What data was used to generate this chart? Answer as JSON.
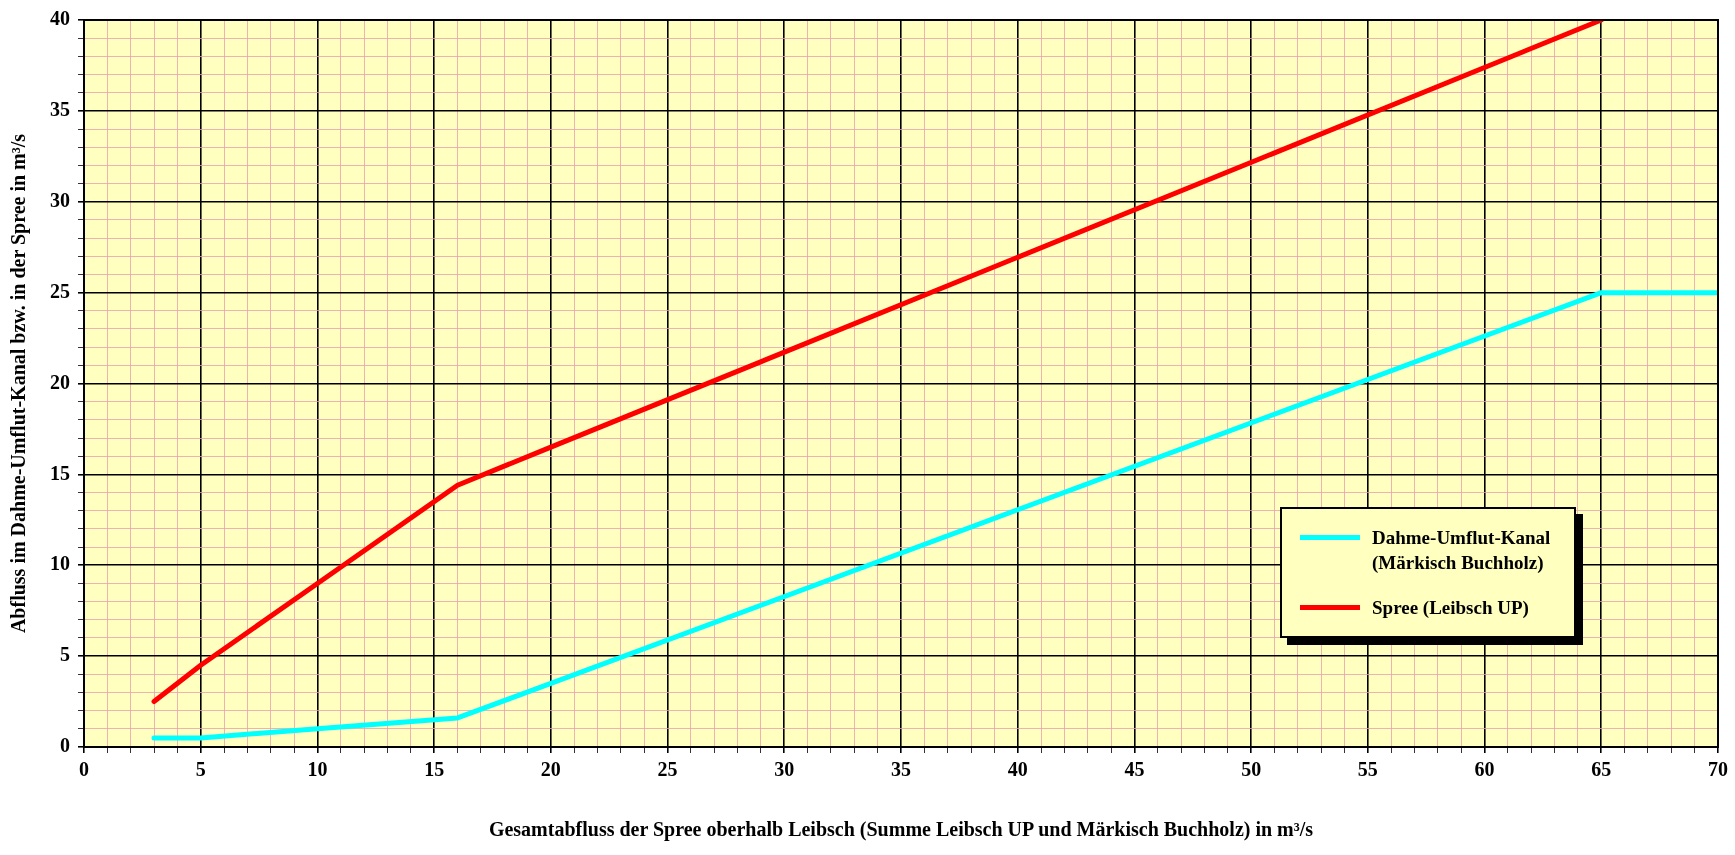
{
  "chart_data": {
    "type": "line",
    "xlabel": "Gesamtabfluss der Spree oberhalb Leibsch (Summe Leibsch UP und Märkisch Buchholz) in m³/s",
    "ylabel": "Abfluss im Dahme-Umflut-Kanal bzw. in der Spree in m³/s",
    "xlim": [
      0,
      70
    ],
    "ylim": [
      0,
      40
    ],
    "xticks": [
      0,
      {
        "value": 1,
        "label": null
      },
      {
        "value": 2,
        "label": null
      },
      {
        "value": 3,
        "label": null
      },
      {
        "value": 4,
        "label": null
      },
      5,
      {
        "value": 6,
        "label": null
      },
      {
        "value": 7,
        "label": null
      },
      {
        "value": 8,
        "label": null
      },
      {
        "value": 9,
        "label": null
      },
      10,
      {
        "value": 11,
        "label": null
      },
      {
        "value": 12,
        "label": null
      },
      {
        "value": 13,
        "label": null
      },
      {
        "value": 14,
        "label": null
      },
      15,
      {
        "value": 16,
        "label": null
      },
      {
        "value": 17,
        "label": null
      },
      {
        "value": 18,
        "label": null
      },
      {
        "value": 19,
        "label": null
      },
      20,
      {
        "value": 21,
        "label": null
      },
      {
        "value": 22,
        "label": null
      },
      {
        "value": 23,
        "label": null
      },
      {
        "value": 24,
        "label": null
      },
      25,
      {
        "value": 26,
        "label": null
      },
      {
        "value": 27,
        "label": null
      },
      {
        "value": 28,
        "label": null
      },
      {
        "value": 29,
        "label": null
      },
      30,
      {
        "value": 31,
        "label": null
      },
      {
        "value": 32,
        "label": null
      },
      {
        "value": 33,
        "label": null
      },
      {
        "value": 34,
        "label": null
      },
      35,
      {
        "value": 36,
        "label": null
      },
      {
        "value": 37,
        "label": null
      },
      {
        "value": 38,
        "label": null
      },
      {
        "value": 39,
        "label": null
      },
      40,
      {
        "value": 41,
        "label": null
      },
      {
        "value": 42,
        "label": null
      },
      {
        "value": 43,
        "label": null
      },
      {
        "value": 44,
        "label": null
      },
      45,
      {
        "value": 46,
        "label": null
      },
      {
        "value": 47,
        "label": null
      },
      {
        "value": 48,
        "label": null
      },
      {
        "value": 49,
        "label": null
      },
      50,
      {
        "value": 51,
        "label": null
      },
      {
        "value": 52,
        "label": null
      },
      {
        "value": 53,
        "label": null
      },
      {
        "value": 54,
        "label": null
      },
      55,
      {
        "value": 56,
        "label": null
      },
      {
        "value": 57,
        "label": null
      },
      {
        "value": 58,
        "label": null
      },
      {
        "value": 59,
        "label": null
      },
      60,
      {
        "value": 61,
        "label": null
      },
      {
        "value": 62,
        "label": null
      },
      {
        "value": 63,
        "label": null
      },
      {
        "value": 64,
        "label": null
      },
      65,
      {
        "value": 66,
        "label": null
      },
      {
        "value": 67,
        "label": null
      },
      {
        "value": 68,
        "label": null
      },
      {
        "value": 69,
        "label": null
      },
      70
    ],
    "yticks": [
      0,
      {
        "value": 1,
        "label": null
      },
      {
        "value": 2,
        "label": null
      },
      {
        "value": 3,
        "label": null
      },
      {
        "value": 4,
        "label": null
      },
      5,
      {
        "value": 6,
        "label": null
      },
      {
        "value": 7,
        "label": null
      },
      {
        "value": 8,
        "label": null
      },
      {
        "value": 9,
        "label": null
      },
      10,
      {
        "value": 11,
        "label": null
      },
      {
        "value": 12,
        "label": null
      },
      {
        "value": 13,
        "label": null
      },
      {
        "value": 14,
        "label": null
      },
      15,
      {
        "value": 16,
        "label": null
      },
      {
        "value": 17,
        "label": null
      },
      {
        "value": 18,
        "label": null
      },
      {
        "value": 19,
        "label": null
      },
      20,
      {
        "value": 21,
        "label": null
      },
      {
        "value": 22,
        "label": null
      },
      {
        "value": 23,
        "label": null
      },
      {
        "value": 24,
        "label": null
      },
      25,
      {
        "value": 26,
        "label": null
      },
      {
        "value": 27,
        "label": null
      },
      {
        "value": 28,
        "label": null
      },
      {
        "value": 29,
        "label": null
      },
      30,
      {
        "value": 31,
        "label": null
      },
      {
        "value": 32,
        "label": null
      },
      {
        "value": 33,
        "label": null
      },
      {
        "value": 34,
        "label": null
      },
      35,
      {
        "value": 36,
        "label": null
      },
      {
        "value": 37,
        "label": null
      },
      {
        "value": 38,
        "label": null
      },
      {
        "value": 39,
        "label": null
      },
      40
    ],
    "grid": true,
    "legend": "right",
    "marker": "none",
    "line_style": "solid",
    "series": [
      {
        "name": "Dahme-Umflut-Kanal\n(Märkisch Buchholz)",
        "color": "#00ffff",
        "x": [
          3,
          5,
          10,
          16,
          20,
          65,
          70
        ],
        "values": [
          0.5,
          0.5,
          1.0,
          1.6,
          3.5,
          25,
          25
        ]
      },
      {
        "name": "Spree (Leibsch UP)",
        "color": "#ff0000",
        "x": [
          3,
          5,
          10,
          16,
          20,
          65
        ],
        "values": [
          2.5,
          4.5,
          9,
          14.4,
          16.5,
          40
        ]
      }
    ]
  }
}
